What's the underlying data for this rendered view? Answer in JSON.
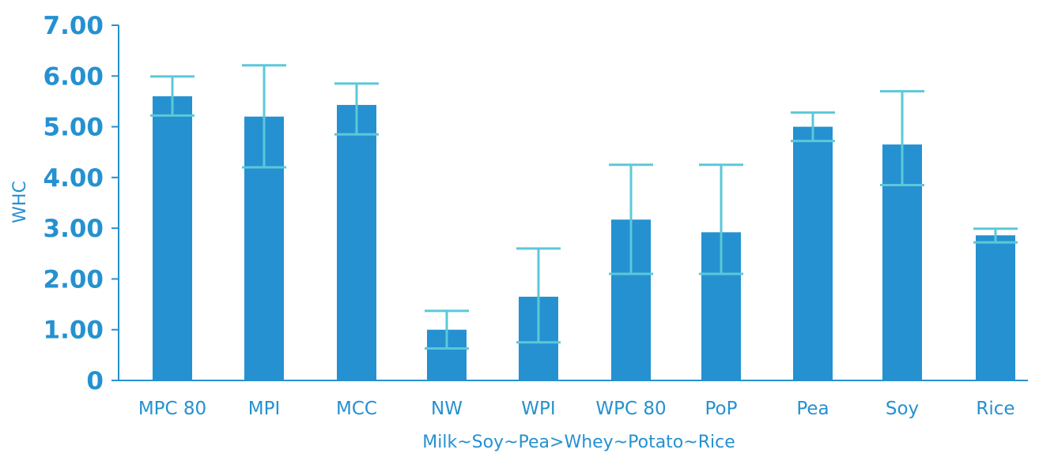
{
  "chart_data": {
    "type": "bar",
    "title": "",
    "xlabel": "Milk~Soy~Pea>Whey~Potato~Rice",
    "ylabel": "WHC",
    "ylim": [
      0,
      7
    ],
    "yticks": [
      0,
      1,
      2,
      3,
      4,
      5,
      6,
      7
    ],
    "ytick_labels": [
      "0",
      "1.00",
      "2.00",
      "3.00",
      "4.00",
      "5.00",
      "6.00",
      "7.00"
    ],
    "categories": [
      "MPC 80",
      "MPI",
      "MCC",
      "NW",
      "WPI",
      "WPC 80",
      "PoP",
      "Pea",
      "Soy",
      "Rice"
    ],
    "values": [
      5.6,
      5.2,
      5.43,
      1.0,
      1.65,
      3.17,
      2.92,
      5.0,
      4.65,
      2.86
    ],
    "error_low": [
      5.22,
      4.2,
      4.85,
      0.63,
      0.75,
      2.1,
      2.1,
      4.72,
      3.85,
      2.72
    ],
    "error_high": [
      5.99,
      6.21,
      5.85,
      1.37,
      2.6,
      4.25,
      4.25,
      5.28,
      5.7,
      2.99
    ],
    "grid": false,
    "legend": "none"
  },
  "colors": {
    "bar": "#2591D0",
    "error_bar": "#5BC8D8",
    "axis": "#2591D0",
    "text": "#2591D0"
  }
}
